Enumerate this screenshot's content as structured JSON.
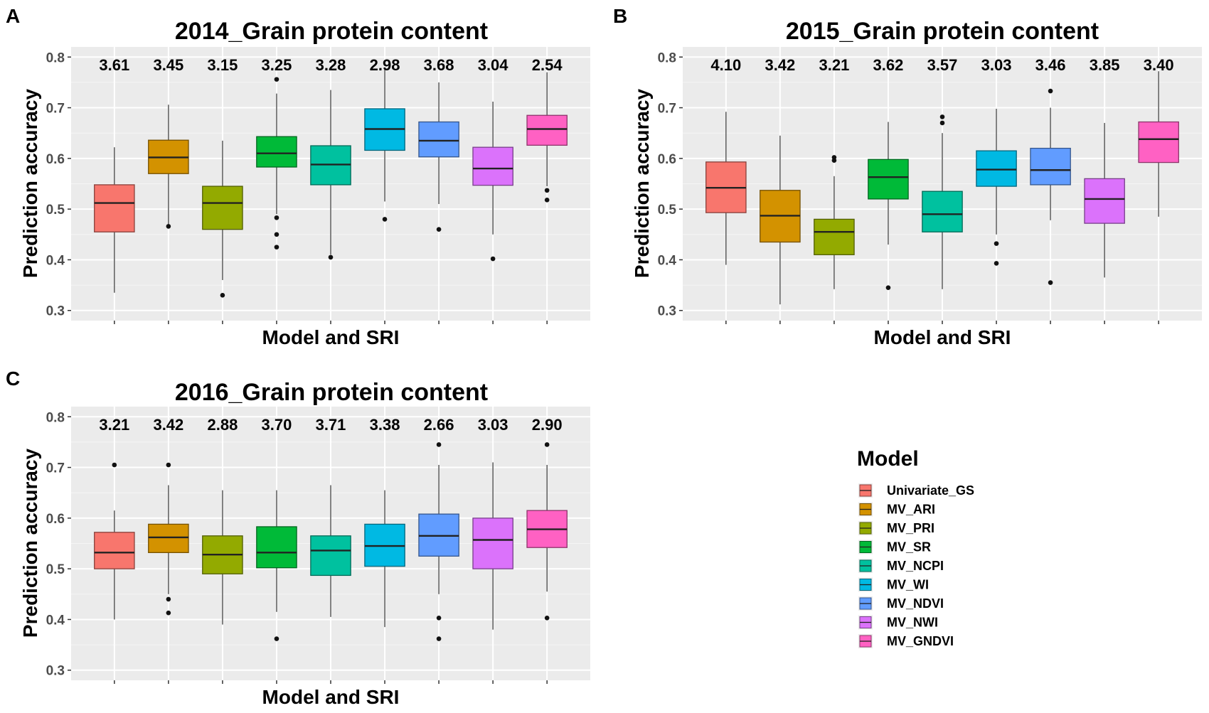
{
  "chart_data": [
    {
      "panel": "A",
      "type": "box",
      "title": "2014_Grain protein content",
      "xlabel": "Model and SRI",
      "ylabel": "Prediction accuracy",
      "ylim": [
        0.28,
        0.82
      ],
      "yticks": [
        "0.3",
        "0.4",
        "0.5",
        "0.6",
        "0.7",
        "0.8"
      ],
      "categories": [
        "Univariate_GS",
        "MV_ARI",
        "MV_PRI",
        "MV_SR",
        "MV_NCPI",
        "MV_WI",
        "MV_NDVI",
        "MV_NWI",
        "MV_GNDVI"
      ],
      "labels": [
        "3.61",
        "3.45",
        "3.15",
        "3.25",
        "3.28",
        "2.98",
        "3.68",
        "3.04",
        "2.54"
      ],
      "boxes": [
        {
          "min": 0.335,
          "q1": 0.455,
          "median": 0.512,
          "q3": 0.548,
          "max": 0.622,
          "outliers": []
        },
        {
          "min": 0.47,
          "q1": 0.57,
          "median": 0.602,
          "q3": 0.636,
          "max": 0.706,
          "outliers": [
            0.466
          ]
        },
        {
          "min": 0.36,
          "q1": 0.46,
          "median": 0.512,
          "q3": 0.545,
          "max": 0.635,
          "outliers": [
            0.33
          ]
        },
        {
          "min": 0.49,
          "q1": 0.583,
          "median": 0.61,
          "q3": 0.643,
          "max": 0.728,
          "outliers": [
            0.756,
            0.483,
            0.45,
            0.425
          ]
        },
        {
          "min": 0.41,
          "q1": 0.548,
          "median": 0.588,
          "q3": 0.625,
          "max": 0.735,
          "outliers": [
            0.405
          ]
        },
        {
          "min": 0.515,
          "q1": 0.616,
          "median": 0.658,
          "q3": 0.698,
          "max": 0.78,
          "outliers": [
            0.48
          ]
        },
        {
          "min": 0.51,
          "q1": 0.603,
          "median": 0.635,
          "q3": 0.672,
          "max": 0.75,
          "outliers": [
            0.46
          ]
        },
        {
          "min": 0.45,
          "q1": 0.547,
          "median": 0.58,
          "q3": 0.622,
          "max": 0.712,
          "outliers": [
            0.402
          ]
        },
        {
          "min": 0.545,
          "q1": 0.626,
          "median": 0.658,
          "q3": 0.685,
          "max": 0.77,
          "outliers": [
            0.537,
            0.518
          ]
        }
      ]
    },
    {
      "panel": "B",
      "type": "box",
      "title": "2015_Grain protein content",
      "xlabel": "Model and SRI",
      "ylabel": "Prediction accuracy",
      "ylim": [
        0.28,
        0.82
      ],
      "yticks": [
        "0.3",
        "0.4",
        "0.5",
        "0.6",
        "0.7",
        "0.8"
      ],
      "categories": [
        "Univariate_GS",
        "MV_ARI",
        "MV_PRI",
        "MV_SR",
        "MV_NCPI",
        "MV_WI",
        "MV_NDVI",
        "MV_NWI",
        "MV_GNDVI"
      ],
      "labels": [
        "4.10",
        "3.42",
        "3.21",
        "3.62",
        "3.57",
        "3.03",
        "3.46",
        "3.85",
        "3.40"
      ],
      "boxes": [
        {
          "min": 0.39,
          "q1": 0.493,
          "median": 0.542,
          "q3": 0.593,
          "max": 0.692,
          "outliers": []
        },
        {
          "min": 0.312,
          "q1": 0.435,
          "median": 0.487,
          "q3": 0.537,
          "max": 0.645,
          "outliers": []
        },
        {
          "min": 0.342,
          "q1": 0.41,
          "median": 0.455,
          "q3": 0.48,
          "max": 0.565,
          "outliers": [
            0.602,
            0.596
          ]
        },
        {
          "min": 0.43,
          "q1": 0.52,
          "median": 0.563,
          "q3": 0.598,
          "max": 0.672,
          "outliers": [
            0.345
          ]
        },
        {
          "min": 0.342,
          "q1": 0.455,
          "median": 0.49,
          "q3": 0.535,
          "max": 0.65,
          "outliers": [
            0.682,
            0.67
          ]
        },
        {
          "min": 0.45,
          "q1": 0.545,
          "median": 0.578,
          "q3": 0.615,
          "max": 0.698,
          "outliers": [
            0.432,
            0.393
          ]
        },
        {
          "min": 0.478,
          "q1": 0.548,
          "median": 0.577,
          "q3": 0.62,
          "max": 0.7,
          "outliers": [
            0.733,
            0.355
          ]
        },
        {
          "min": 0.365,
          "q1": 0.472,
          "median": 0.52,
          "q3": 0.56,
          "max": 0.67,
          "outliers": []
        },
        {
          "min": 0.485,
          "q1": 0.592,
          "median": 0.638,
          "q3": 0.672,
          "max": 0.772,
          "outliers": []
        }
      ]
    },
    {
      "panel": "C",
      "type": "box",
      "title": "2016_Grain protein content",
      "xlabel": "Model and SRI",
      "ylabel": "Prediction accuracy",
      "ylim": [
        0.28,
        0.82
      ],
      "yticks": [
        "0.3",
        "0.4",
        "0.5",
        "0.6",
        "0.7",
        "0.8"
      ],
      "categories": [
        "Univariate_GS",
        "MV_ARI",
        "MV_PRI",
        "MV_SR",
        "MV_NCPI",
        "MV_WI",
        "MV_NDVI",
        "MV_NWI",
        "MV_GNDVI"
      ],
      "labels": [
        "3.21",
        "3.42",
        "2.88",
        "3.70",
        "3.71",
        "3.38",
        "2.66",
        "3.03",
        "2.90"
      ],
      "boxes": [
        {
          "min": 0.4,
          "q1": 0.5,
          "median": 0.532,
          "q3": 0.572,
          "max": 0.615,
          "outliers": [
            0.705
          ]
        },
        {
          "min": 0.45,
          "q1": 0.532,
          "median": 0.562,
          "q3": 0.588,
          "max": 0.665,
          "outliers": [
            0.705,
            0.44,
            0.413
          ]
        },
        {
          "min": 0.39,
          "q1": 0.49,
          "median": 0.528,
          "q3": 0.565,
          "max": 0.655,
          "outliers": []
        },
        {
          "min": 0.415,
          "q1": 0.502,
          "median": 0.532,
          "q3": 0.583,
          "max": 0.655,
          "outliers": [
            0.362
          ]
        },
        {
          "min": 0.405,
          "q1": 0.487,
          "median": 0.536,
          "q3": 0.565,
          "max": 0.665,
          "outliers": []
        },
        {
          "min": 0.385,
          "q1": 0.505,
          "median": 0.545,
          "q3": 0.588,
          "max": 0.655,
          "outliers": []
        },
        {
          "min": 0.45,
          "q1": 0.525,
          "median": 0.565,
          "q3": 0.608,
          "max": 0.705,
          "outliers": [
            0.745,
            0.403,
            0.362
          ]
        },
        {
          "min": 0.38,
          "q1": 0.5,
          "median": 0.557,
          "q3": 0.6,
          "max": 0.71,
          "outliers": []
        },
        {
          "min": 0.455,
          "q1": 0.542,
          "median": 0.578,
          "q3": 0.615,
          "max": 0.705,
          "outliers": [
            0.745,
            0.403
          ]
        }
      ]
    }
  ],
  "legend": {
    "title": "Model",
    "items": [
      {
        "label": "Univariate_GS",
        "color": "#F8766D"
      },
      {
        "label": "MV_ARI",
        "color": "#D39200"
      },
      {
        "label": "MV_PRI",
        "color": "#93AA00"
      },
      {
        "label": "MV_SR",
        "color": "#00BA38"
      },
      {
        "label": "MV_NCPI",
        "color": "#00C19F"
      },
      {
        "label": "MV_WI",
        "color": "#00B9E3"
      },
      {
        "label": "MV_NDVI",
        "color": "#619CFF"
      },
      {
        "label": "MV_NWI",
        "color": "#DB72FB"
      },
      {
        "label": "MV_GNDVI",
        "color": "#FF61C3"
      }
    ]
  }
}
